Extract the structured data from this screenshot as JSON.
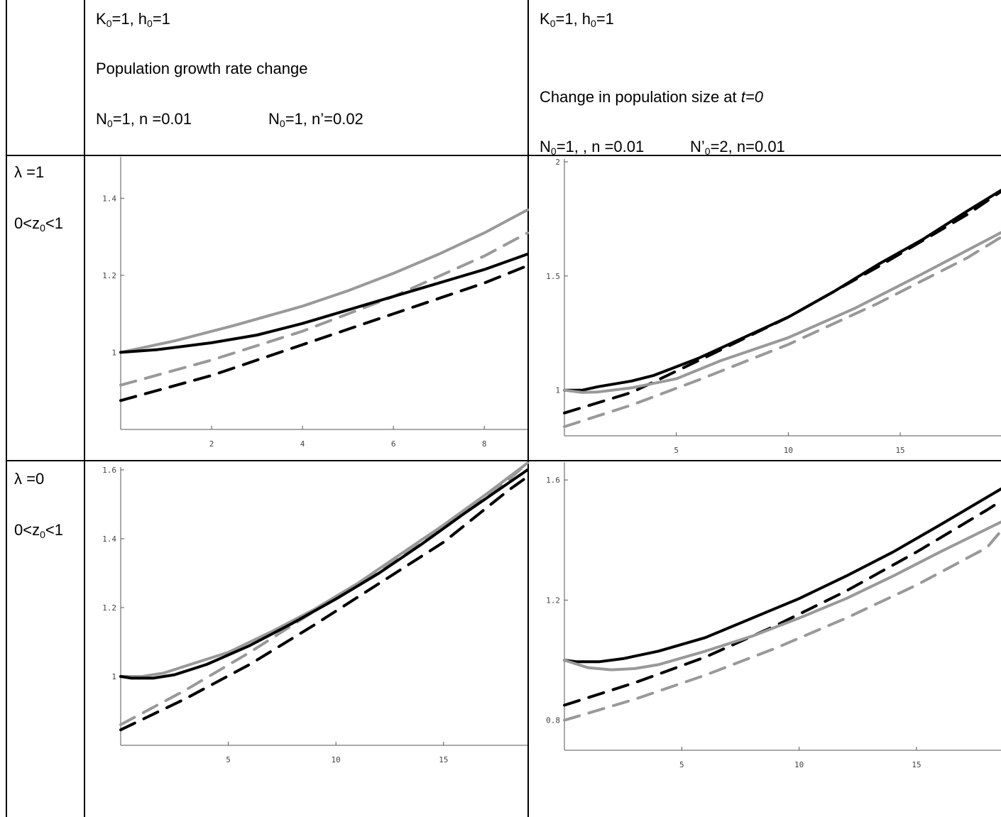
{
  "header": {
    "col2": {
      "params": [
        "K",
        "0",
        "=1,  h",
        "0",
        "=1"
      ],
      "title": "Population  growth rate change",
      "legend_a": [
        "N",
        "0",
        "=1, n =0.01"
      ],
      "legend_b": [
        "N",
        "0",
        "=1,  n’=0.02"
      ]
    },
    "col3": {
      "params": [
        "K",
        "0",
        "=1,  h",
        "0",
        "=1"
      ],
      "title_prefix": "Change in population size at ",
      "title_italic": "t=0",
      "legend_a": [
        "N",
        "0",
        "=1, , n =0.01"
      ],
      "legend_b": [
        "N’",
        "0",
        "=2,  n=0.01"
      ]
    }
  },
  "rows": [
    {
      "lambda_label": "λ  =1",
      "z_label": [
        "0<z",
        "0",
        "<1"
      ]
    },
    {
      "lambda_label": "λ  =0",
      "z_label": [
        "0<z",
        "0",
        "<1"
      ]
    }
  ],
  "colors": {
    "black": "#000000",
    "grey": "#999999"
  },
  "chart_data": [
    {
      "type": "line",
      "xlim": [
        0,
        8.95
      ],
      "ylim": [
        0.8,
        1.5
      ],
      "xticks": [
        2,
        4,
        6,
        8
      ],
      "yticks": [
        1,
        1.2,
        1.4
      ],
      "xtick_labels": [
        "2",
        "4",
        "6",
        "8"
      ],
      "ytick_labels": [
        "1",
        "1.2",
        "1.4"
      ],
      "series": [
        {
          "color": "#999999",
          "dash": false,
          "points": [
            [
              0,
              1.0
            ],
            [
              1.2,
              1.03
            ],
            [
              2.5,
              1.07
            ],
            [
              4,
              1.12
            ],
            [
              5,
              1.16
            ],
            [
              6,
              1.205
            ],
            [
              7,
              1.255
            ],
            [
              8,
              1.31
            ],
            [
              8.95,
              1.37
            ]
          ]
        },
        {
          "color": "#999999",
          "dash": true,
          "points": [
            [
              0,
              0.915
            ],
            [
              2,
              0.98
            ],
            [
              4,
              1.055
            ],
            [
              6,
              1.145
            ],
            [
              8,
              1.25
            ],
            [
              8.95,
              1.31
            ]
          ]
        },
        {
          "color": "#000000",
          "dash": false,
          "points": [
            [
              0,
              1.0
            ],
            [
              0.8,
              1.007
            ],
            [
              2,
              1.025
            ],
            [
              3,
              1.045
            ],
            [
              4,
              1.075
            ],
            [
              5,
              1.11
            ],
            [
              6,
              1.145
            ],
            [
              7,
              1.18
            ],
            [
              8,
              1.215
            ],
            [
              8.95,
              1.255
            ]
          ]
        },
        {
          "color": "#000000",
          "dash": true,
          "points": [
            [
              0,
              0.875
            ],
            [
              2,
              0.94
            ],
            [
              4,
              1.02
            ],
            [
              6,
              1.1
            ],
            [
              8,
              1.18
            ],
            [
              8.95,
              1.225
            ]
          ]
        }
      ]
    },
    {
      "type": "line",
      "xlim": [
        0,
        19.5
      ],
      "ylim": [
        0.8,
        2.0
      ],
      "xticks": [
        5,
        10,
        15
      ],
      "yticks": [
        1,
        1.5,
        2
      ],
      "xtick_labels": [
        "5",
        "10",
        "15"
      ],
      "ytick_labels": [
        "1",
        "1.5",
        "2"
      ],
      "series": [
        {
          "color": "#000000",
          "dash": false,
          "points": [
            [
              0,
              1.0
            ],
            [
              0.8,
              1.0
            ],
            [
              1.5,
              1.015
            ],
            [
              3,
              1.04
            ],
            [
              4,
              1.065
            ],
            [
              6,
              1.14
            ],
            [
              8,
              1.23
            ],
            [
              10,
              1.32
            ],
            [
              12,
              1.43
            ],
            [
              14,
              1.55
            ],
            [
              16,
              1.66
            ],
            [
              18,
              1.785
            ],
            [
              19.5,
              1.875
            ]
          ]
        },
        {
          "color": "#000000",
          "dash": true,
          "points": [
            [
              0,
              0.9
            ],
            [
              3,
              0.99
            ],
            [
              6,
              1.13
            ],
            [
              10,
              1.32
            ],
            [
              14,
              1.54
            ],
            [
              18,
              1.77
            ],
            [
              19.5,
              1.87
            ]
          ]
        },
        {
          "color": "#999999",
          "dash": false,
          "points": [
            [
              0,
              1.0
            ],
            [
              0.8,
              0.99
            ],
            [
              1.5,
              0.992
            ],
            [
              3,
              1.01
            ],
            [
              5,
              1.05
            ],
            [
              7,
              1.13
            ],
            [
              10,
              1.23
            ],
            [
              13,
              1.36
            ],
            [
              16,
              1.51
            ],
            [
              19.5,
              1.69
            ]
          ]
        },
        {
          "color": "#999999",
          "dash": true,
          "points": [
            [
              0,
              0.84
            ],
            [
              3,
              0.935
            ],
            [
              6,
              1.045
            ],
            [
              10,
              1.2
            ],
            [
              14,
              1.38
            ],
            [
              18,
              1.58
            ],
            [
              19.5,
              1.67
            ]
          ]
        }
      ]
    },
    {
      "type": "line",
      "xlim": [
        0,
        18.9
      ],
      "ylim": [
        0.8,
        1.6
      ],
      "xticks": [
        5,
        10,
        15
      ],
      "yticks": [
        1,
        1.2,
        1.4,
        1.6
      ],
      "xtick_labels": [
        "5",
        "10",
        "15"
      ],
      "ytick_labels": [
        "1",
        "1.2",
        "1.4",
        "1.6"
      ],
      "series": [
        {
          "color": "#999999",
          "dash": false,
          "points": [
            [
              0,
              1.0
            ],
            [
              1,
              1.0
            ],
            [
              2,
              1.01
            ],
            [
              3,
              1.03
            ],
            [
              5,
              1.07
            ],
            [
              7,
              1.13
            ],
            [
              9,
              1.195
            ],
            [
              11,
              1.27
            ],
            [
              13,
              1.355
            ],
            [
              15,
              1.44
            ],
            [
              17,
              1.53
            ],
            [
              18.9,
              1.62
            ]
          ]
        },
        {
          "color": "#999999",
          "dash": true,
          "points": [
            [
              0,
              0.86
            ],
            [
              3,
              0.96
            ],
            [
              6,
              1.07
            ],
            [
              9,
              1.19
            ],
            [
              12,
              1.31
            ],
            [
              15,
              1.43
            ],
            [
              18,
              1.57
            ],
            [
              18.9,
              1.62
            ]
          ]
        },
        {
          "color": "#000000",
          "dash": false,
          "points": [
            [
              0,
              1.0
            ],
            [
              0.5,
              0.995
            ],
            [
              1.5,
              0.995
            ],
            [
              2.5,
              1.005
            ],
            [
              4,
              1.035
            ],
            [
              6,
              1.09
            ],
            [
              8,
              1.155
            ],
            [
              10,
              1.225
            ],
            [
              12,
              1.3
            ],
            [
              14,
              1.385
            ],
            [
              16,
              1.475
            ],
            [
              18.9,
              1.6
            ]
          ]
        },
        {
          "color": "#000000",
          "dash": true,
          "points": [
            [
              0,
              0.845
            ],
            [
              3,
              0.935
            ],
            [
              6,
              1.035
            ],
            [
              9,
              1.15
            ],
            [
              12,
              1.27
            ],
            [
              15,
              1.39
            ],
            [
              18,
              1.54
            ],
            [
              18.9,
              1.58
            ]
          ]
        }
      ]
    },
    {
      "type": "line",
      "xlim": [
        0,
        18.6
      ],
      "ylim": [
        0.7,
        1.65
      ],
      "xticks": [
        5,
        10,
        15
      ],
      "yticks": [
        0.8,
        1.2,
        1.6
      ],
      "xtick_labels": [
        "5",
        "10",
        "15"
      ],
      "ytick_labels": [
        "0.8",
        "1.2",
        "1.6"
      ],
      "series": [
        {
          "color": "#000000",
          "dash": false,
          "points": [
            [
              0,
              1.0
            ],
            [
              0.5,
              0.995
            ],
            [
              1.5,
              0.995
            ],
            [
              2.5,
              1.005
            ],
            [
              4,
              1.03
            ],
            [
              6,
              1.075
            ],
            [
              8,
              1.14
            ],
            [
              10,
              1.205
            ],
            [
              12,
              1.28
            ],
            [
              14,
              1.36
            ],
            [
              16,
              1.45
            ],
            [
              18.6,
              1.57
            ]
          ]
        },
        {
          "color": "#000000",
          "dash": true,
          "points": [
            [
              0,
              0.85
            ],
            [
              3,
              0.925
            ],
            [
              6,
              1.01
            ],
            [
              9,
              1.115
            ],
            [
              12,
              1.23
            ],
            [
              15,
              1.36
            ],
            [
              18,
              1.5
            ],
            [
              18.6,
              1.53
            ]
          ]
        },
        {
          "color": "#999999",
          "dash": false,
          "points": [
            [
              0,
              1.0
            ],
            [
              1,
              0.975
            ],
            [
              2,
              0.968
            ],
            [
              3,
              0.972
            ],
            [
              4,
              0.985
            ],
            [
              6,
              1.03
            ],
            [
              8,
              1.08
            ],
            [
              10,
              1.14
            ],
            [
              12,
              1.205
            ],
            [
              14,
              1.28
            ],
            [
              16,
              1.36
            ],
            [
              18.6,
              1.46
            ]
          ]
        },
        {
          "color": "#999999",
          "dash": true,
          "points": [
            [
              0,
              0.8
            ],
            [
              3,
              0.87
            ],
            [
              6,
              0.95
            ],
            [
              9,
              1.04
            ],
            [
              12,
              1.14
            ],
            [
              15,
              1.25
            ],
            [
              18,
              1.375
            ],
            [
              18.6,
              1.43
            ]
          ]
        }
      ]
    }
  ]
}
